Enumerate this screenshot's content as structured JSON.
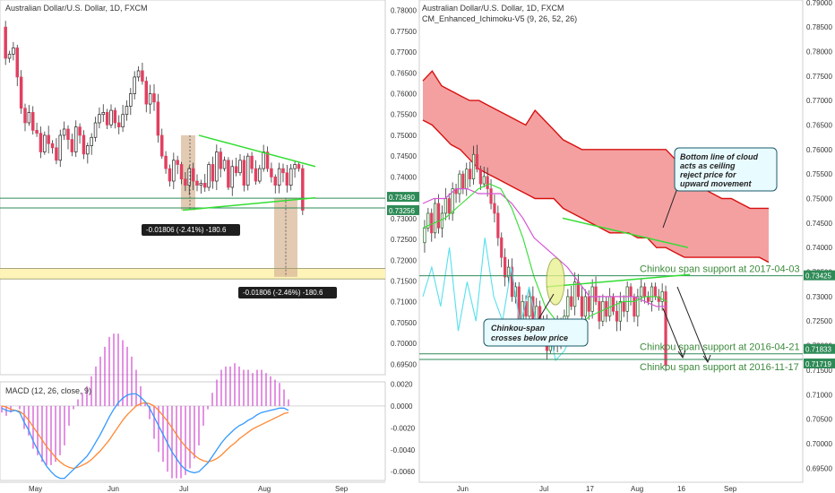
{
  "colors": {
    "bull": "#ffffff",
    "bear": "#e04060",
    "bull_border": "#222222",
    "cloud": "#f08080",
    "cloud_edge": "#d81010",
    "trend": "#33dd33",
    "hline": "#2e8b57",
    "tenkan": "#33dd33",
    "kijun": "#d455d4",
    "chikou": "#55e0ee",
    "macd": "#3399ff",
    "signal": "#ff8833",
    "hist": "#d455d4",
    "range_box": "#d8b89a",
    "support_zone": "#fff3b0",
    "callout_fill": "#e8fbff",
    "callout_edge": "#1a5a6a"
  },
  "left": {
    "title": "Australian Dollar/U.S. Dollar, 1D, FXCM",
    "price_ticks": [
      "0.78000",
      "0.77500",
      "0.77000",
      "0.76500",
      "0.76000",
      "0.75500",
      "0.75000",
      "0.74500",
      "0.74000",
      "0.73500",
      "0.73000",
      "0.72500",
      "0.72000",
      "0.71500",
      "0.71000",
      "0.70500",
      "0.70000",
      "0.69500"
    ],
    "x_ticks": [
      "May",
      "Jun",
      "Jul",
      "Aug",
      "Sep"
    ],
    "price_badges": [
      "0.73490",
      "0.73256"
    ],
    "measure_labels": [
      "-0.01806 (-2.41%) -180.6",
      "-0.01806 (-2.46%) -180.6"
    ],
    "macd_title": "MACD (12, 26, close, 9)",
    "macd_ticks": [
      "0.0020",
      "0.0000",
      "-0.0020",
      "-0.0040",
      "-0.0060"
    ]
  },
  "right": {
    "title": "Australian Dollar/U.S. Dollar, 1D, FXCM",
    "indicator": "CM_Enhanced_Ichimoku-V5 (9, 26, 52, 26)",
    "price_ticks": [
      "0.79000",
      "0.78500",
      "0.78000",
      "0.77500",
      "0.77000",
      "0.76500",
      "0.76000",
      "0.75500",
      "0.75000",
      "0.74500",
      "0.74000",
      "0.73500",
      "0.73000",
      "0.72500",
      "0.72000",
      "0.71500",
      "0.71000",
      "0.70500",
      "0.70000",
      "0.69500"
    ],
    "x_ticks": [
      "Jun",
      "Jul",
      "17",
      "Aug",
      "16",
      "Sep"
    ],
    "price_badges": [
      "0.73425",
      "0.71833",
      "0.71719"
    ],
    "support_labels": [
      "Chinkou span support at 2017-04-03",
      "Chinkou span support at 2016-04-21",
      "Chinkou span support at 2016-11-17"
    ],
    "callout_cloud": [
      "Bottom line of cloud",
      "acts as ceiling",
      "reject price for",
      "upward movement"
    ],
    "callout_chikou": [
      "Chinkou-span",
      "crosses below price"
    ]
  },
  "chart_data": [
    {
      "type": "candlestick",
      "title": "Australian Dollar/U.S. Dollar, 1D, FXCM",
      "pair": "AUD/USD",
      "timeframe": "1D",
      "x_ticks": [
        "May",
        "Jun",
        "Jul",
        "Aug",
        "Sep"
      ],
      "ylim": [
        0.6925,
        0.7825
      ],
      "closes": [
        0.7685,
        0.7695,
        0.771,
        0.764,
        0.7565,
        0.753,
        0.7555,
        0.7512,
        0.7505,
        0.746,
        0.75,
        0.748,
        0.747,
        0.744,
        0.75,
        0.7515,
        0.749,
        0.746,
        0.752,
        0.75,
        0.7455,
        0.7475,
        0.7495,
        0.753,
        0.755,
        0.7555,
        0.7525,
        0.756,
        0.753,
        0.752,
        0.755,
        0.757,
        0.76,
        0.764,
        0.7655,
        0.763,
        0.7575,
        0.76,
        0.758,
        0.75,
        0.745,
        0.742,
        0.739,
        0.744,
        0.743,
        0.7395,
        0.738,
        0.742,
        0.739,
        0.738,
        0.7385,
        0.7375,
        0.743,
        0.739,
        0.746,
        0.742,
        0.744,
        0.7375,
        0.7425,
        0.741,
        0.744,
        0.738,
        0.745,
        0.742,
        0.739,
        0.742,
        0.746,
        0.742,
        0.74,
        0.738,
        0.742,
        0.741,
        0.738,
        0.742,
        0.743,
        0.742,
        0.732
      ],
      "levels": [
        0.7349,
        0.73256
      ],
      "support_zone": [
        0.7155,
        0.718
      ],
      "measurements": [
        {
          "change": -0.01806,
          "percent": -2.41,
          "pips": -180.6
        },
        {
          "change": -0.01806,
          "percent": -2.46,
          "pips": -180.6
        }
      ]
    },
    {
      "type": "line",
      "title": "MACD (12, 26, close, 9)",
      "x_ticks": [
        "May",
        "Jun",
        "Jul",
        "Aug",
        "Sep"
      ],
      "ylim": [
        -0.0068,
        0.0022
      ],
      "series": [
        {
          "values": [
            -0.0002,
            -0.0004,
            -0.0005,
            -0.0004,
            -0.0006,
            -0.0015,
            -0.0022,
            -0.0032,
            -0.004,
            -0.0048,
            -0.0055,
            -0.006,
            -0.0064,
            -0.0066,
            -0.0066,
            -0.0062,
            -0.0058,
            -0.0054,
            -0.005,
            -0.0046,
            -0.004,
            -0.0033,
            -0.0026,
            -0.0018,
            -0.001,
            -0.0003,
            0.0003,
            0.0007,
            0.001,
            0.0011,
            0.0011,
            0.0008,
            0.0004,
            -0.0002,
            -0.001,
            -0.0018,
            -0.0026,
            -0.0034,
            -0.0042,
            -0.0048,
            -0.0054,
            -0.0058,
            -0.006,
            -0.0061,
            -0.006,
            -0.0056,
            -0.0052,
            -0.0046,
            -0.004,
            -0.0034,
            -0.0029,
            -0.0025,
            -0.0021,
            -0.0018,
            -0.0016,
            -0.0013,
            -0.0011,
            -0.0008,
            -0.0006,
            -0.0005,
            -0.0004,
            -0.0003,
            -0.0002,
            -0.0002,
            -0.0004
          ]
        },
        {
          "values": [
            0.0,
            -0.0001,
            -0.0003,
            -0.0004,
            -0.0005,
            -0.0008,
            -0.0013,
            -0.0019,
            -0.0025,
            -0.0031,
            -0.0037,
            -0.0042,
            -0.0047,
            -0.0051,
            -0.0054,
            -0.0056,
            -0.0057,
            -0.0056,
            -0.0054,
            -0.0052,
            -0.0049,
            -0.0045,
            -0.0041,
            -0.0036,
            -0.0031,
            -0.0025,
            -0.0019,
            -0.0013,
            -0.0008,
            -0.0004,
            0.0,
            0.0002,
            0.0003,
            0.0002,
            0.0,
            -0.0004,
            -0.0009,
            -0.0014,
            -0.002,
            -0.0026,
            -0.0032,
            -0.0037,
            -0.0041,
            -0.0045,
            -0.0048,
            -0.005,
            -0.0051,
            -0.005,
            -0.0048,
            -0.0045,
            -0.0041,
            -0.0037,
            -0.0034,
            -0.003,
            -0.0027,
            -0.0024,
            -0.0021,
            -0.0019,
            -0.0017,
            -0.0015,
            -0.0013,
            -0.0011,
            -0.0009,
            -0.0007,
            -0.0006
          ]
        }
      ]
    },
    {
      "type": "candlestick",
      "title": "Australian Dollar/U.S. Dollar, 1D, FXCM",
      "indicator": "CM_Enhanced_Ichimoku-V5 (9, 26, 52, 26)",
      "x_ticks": [
        "Jun",
        "Jul",
        "17",
        "Aug",
        "16",
        "Sep"
      ],
      "ylim": [
        0.6925,
        0.7905
      ],
      "closes": [
        0.744,
        0.747,
        0.743,
        0.749,
        0.744,
        0.747,
        0.75,
        0.747,
        0.752,
        0.751,
        0.755,
        0.752,
        0.756,
        0.754,
        0.759,
        0.756,
        0.753,
        0.7545,
        0.752,
        0.749,
        0.747,
        0.742,
        0.738,
        0.734,
        0.736,
        0.73,
        0.732,
        0.722,
        0.729,
        0.726,
        0.73,
        0.724,
        0.728,
        0.722,
        0.725,
        0.719,
        0.723,
        0.72,
        0.724,
        0.721,
        0.726,
        0.73,
        0.728,
        0.733,
        0.73,
        0.726,
        0.73,
        0.727,
        0.732,
        0.729,
        0.725,
        0.729,
        0.726,
        0.73,
        0.727,
        0.725,
        0.729,
        0.727,
        0.732,
        0.73,
        0.726,
        0.73,
        0.732,
        0.73,
        0.729,
        0.732,
        0.73,
        0.729,
        0.731,
        0.716
      ],
      "cloud_top": [
        0.774,
        0.776,
        0.773,
        0.772,
        0.771,
        0.77,
        0.77,
        0.769,
        0.768,
        0.767,
        0.766,
        0.765,
        0.768,
        0.766,
        0.764,
        0.762,
        0.761,
        0.76,
        0.76,
        0.76,
        0.76,
        0.76,
        0.76,
        0.76,
        0.76,
        0.76,
        0.76,
        0.758,
        0.756,
        0.754,
        0.752,
        0.751,
        0.75,
        0.75,
        0.749,
        0.748,
        0.748,
        0.748
      ],
      "cloud_bottom": [
        0.766,
        0.765,
        0.763,
        0.761,
        0.76,
        0.758,
        0.756,
        0.755,
        0.754,
        0.753,
        0.752,
        0.751,
        0.75,
        0.75,
        0.75,
        0.748,
        0.747,
        0.746,
        0.745,
        0.744,
        0.743,
        0.743,
        0.743,
        0.742,
        0.742,
        0.74,
        0.74,
        0.739,
        0.738,
        0.738,
        0.738,
        0.738,
        0.738,
        0.738,
        0.738,
        0.738,
        0.738,
        0.737
      ],
      "levels": [
        0.73425,
        0.71833,
        0.71719
      ],
      "annotations": [
        "Bottom line of cloud acts as ceiling reject price for upward movement",
        "Chinkou-span crosses below price"
      ]
    }
  ]
}
